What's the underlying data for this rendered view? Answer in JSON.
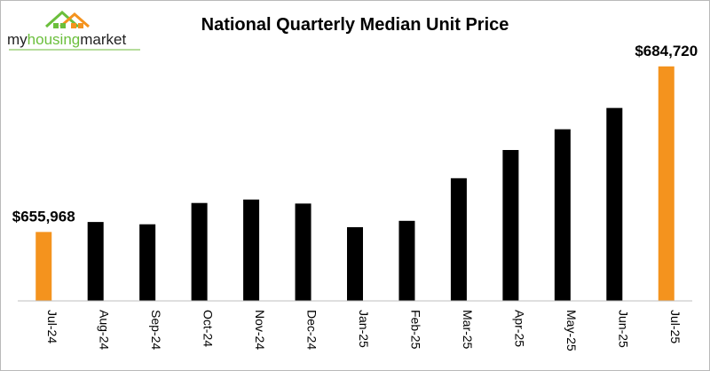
{
  "brand": {
    "logo_text_my": "my",
    "logo_text_housing": "housing",
    "logo_text_market": "market",
    "colors": {
      "green": "#6bbf3c",
      "orange": "#f4931e",
      "dark": "#222222"
    }
  },
  "chart_data": {
    "type": "bar",
    "title": "National Quarterly Median Unit Price",
    "xlabel": "",
    "ylabel": "",
    "categories": [
      "Jul-24",
      "Aug-24",
      "Sep-24",
      "Oct-24",
      "Nov-24",
      "Dec-24",
      "Jan-25",
      "Feb-25",
      "Mar-25",
      "Apr-25",
      "May-25",
      "Jun-25",
      "Jul-25"
    ],
    "values": [
      655968,
      657700,
      657300,
      661000,
      661600,
      660900,
      656800,
      657900,
      665300,
      670200,
      673800,
      677500,
      684720
    ],
    "ylim": [
      644000,
      687000
    ],
    "colors": [
      "#f4931e",
      "#000000",
      "#000000",
      "#000000",
      "#000000",
      "#000000",
      "#000000",
      "#000000",
      "#000000",
      "#000000",
      "#000000",
      "#000000",
      "#f4931e"
    ],
    "data_labels": [
      {
        "index": 0,
        "text": "$655,968"
      },
      {
        "index": 12,
        "text": "$684,720"
      }
    ],
    "grid": false,
    "legend": "none"
  }
}
